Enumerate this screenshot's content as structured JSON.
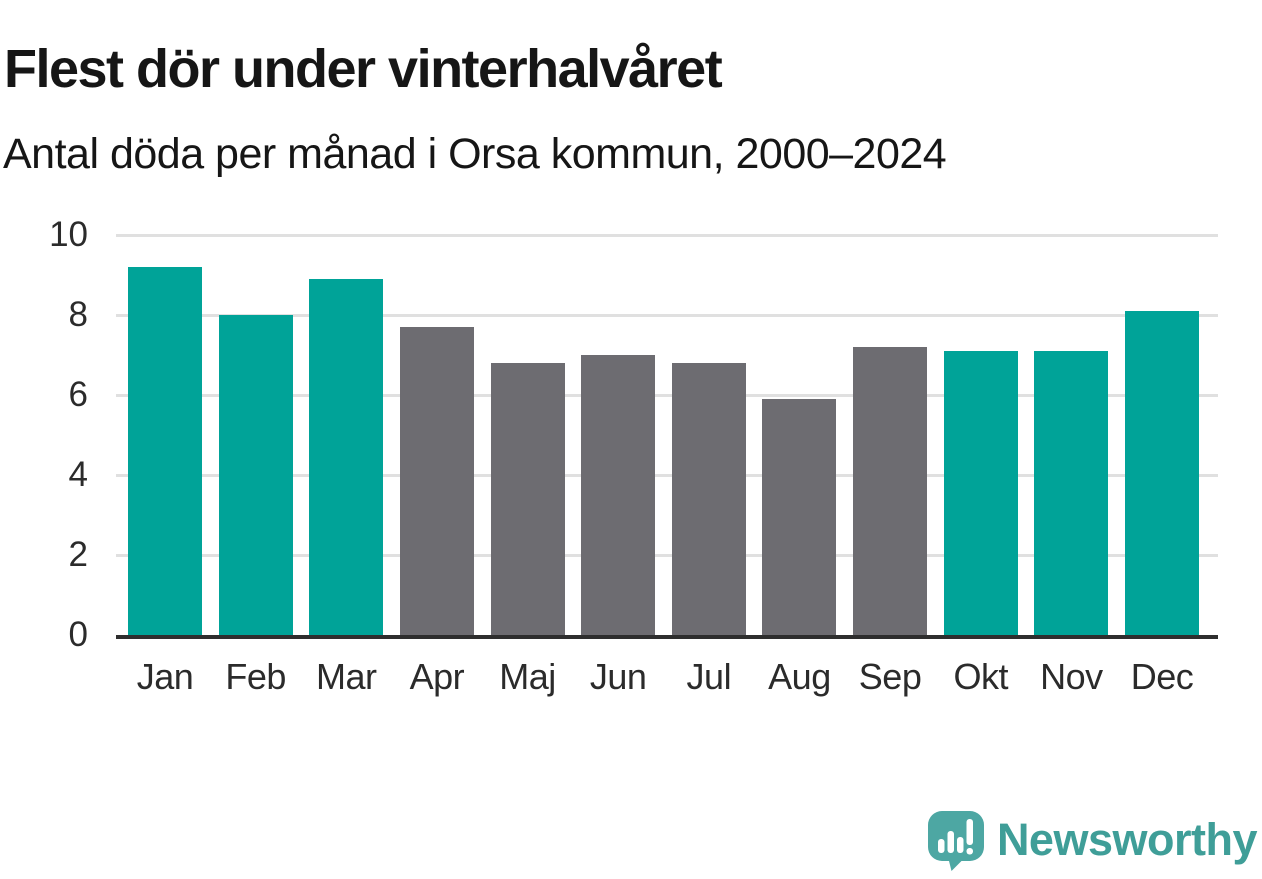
{
  "chart_data": {
    "type": "bar",
    "title": "Flest dör under vinterhalvåret",
    "subtitle": "Antal döda per månad i Orsa kommun, 2000–2024",
    "categories": [
      "Jan",
      "Feb",
      "Mar",
      "Apr",
      "Maj",
      "Jun",
      "Jul",
      "Aug",
      "Sep",
      "Okt",
      "Nov",
      "Dec"
    ],
    "values": [
      9.2,
      8.0,
      8.9,
      7.7,
      6.8,
      7.0,
      6.8,
      5.9,
      7.2,
      7.1,
      7.1,
      8.1
    ],
    "bar_color_keys": [
      "winter",
      "winter",
      "winter",
      "summer",
      "summer",
      "summer",
      "summer",
      "summer",
      "summer",
      "winter",
      "winter",
      "winter"
    ],
    "palette": {
      "winter": "#00A398",
      "summer": "#6D6C71"
    },
    "xlabel": "",
    "ylabel": "",
    "ylim": [
      0,
      10
    ],
    "yticks": [
      0,
      2,
      4,
      6,
      8,
      10
    ],
    "grid": true,
    "legend_position": "none",
    "gridline_color": "#E0E0E0",
    "axis_color": "#2E2E2E",
    "tick_label_color": "#2B2B2B"
  },
  "footer": {
    "brand": "Newsworthy",
    "brand_color": "#3F9E98",
    "logo_icon": "speech-bubble-bar-chart-icon",
    "logo_bubble_color": "#4DA7A3",
    "logo_glyph_color": "#FFFFFF"
  }
}
